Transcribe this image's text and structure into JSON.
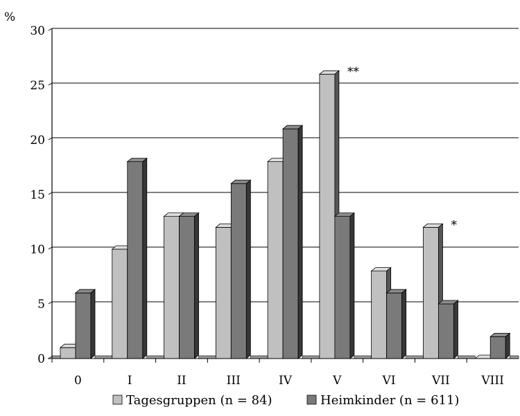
{
  "chart_data": {
    "type": "bar",
    "ylabel": "%",
    "ylim": [
      0,
      30
    ],
    "yticks": [
      0,
      5,
      10,
      15,
      20,
      25,
      30
    ],
    "grid": true,
    "legend_position": "bottom",
    "categories": [
      "0",
      "I",
      "II",
      "III",
      "IV",
      "V",
      "VI",
      "VII",
      "VIII"
    ],
    "series": [
      {
        "name": "Tagesgruppen (n = 84)",
        "values": [
          1,
          10,
          13,
          12,
          18,
          26,
          8,
          12,
          0
        ],
        "color": "#c0c0c0"
      },
      {
        "name": "Heimkinder (n = 611)",
        "values": [
          6,
          18,
          13,
          16,
          21,
          13,
          6,
          5,
          2
        ],
        "color": "#7a7a7a"
      }
    ],
    "annotations": [
      {
        "category": "V",
        "text": "**"
      },
      {
        "category": "VII",
        "text": "*"
      }
    ]
  }
}
